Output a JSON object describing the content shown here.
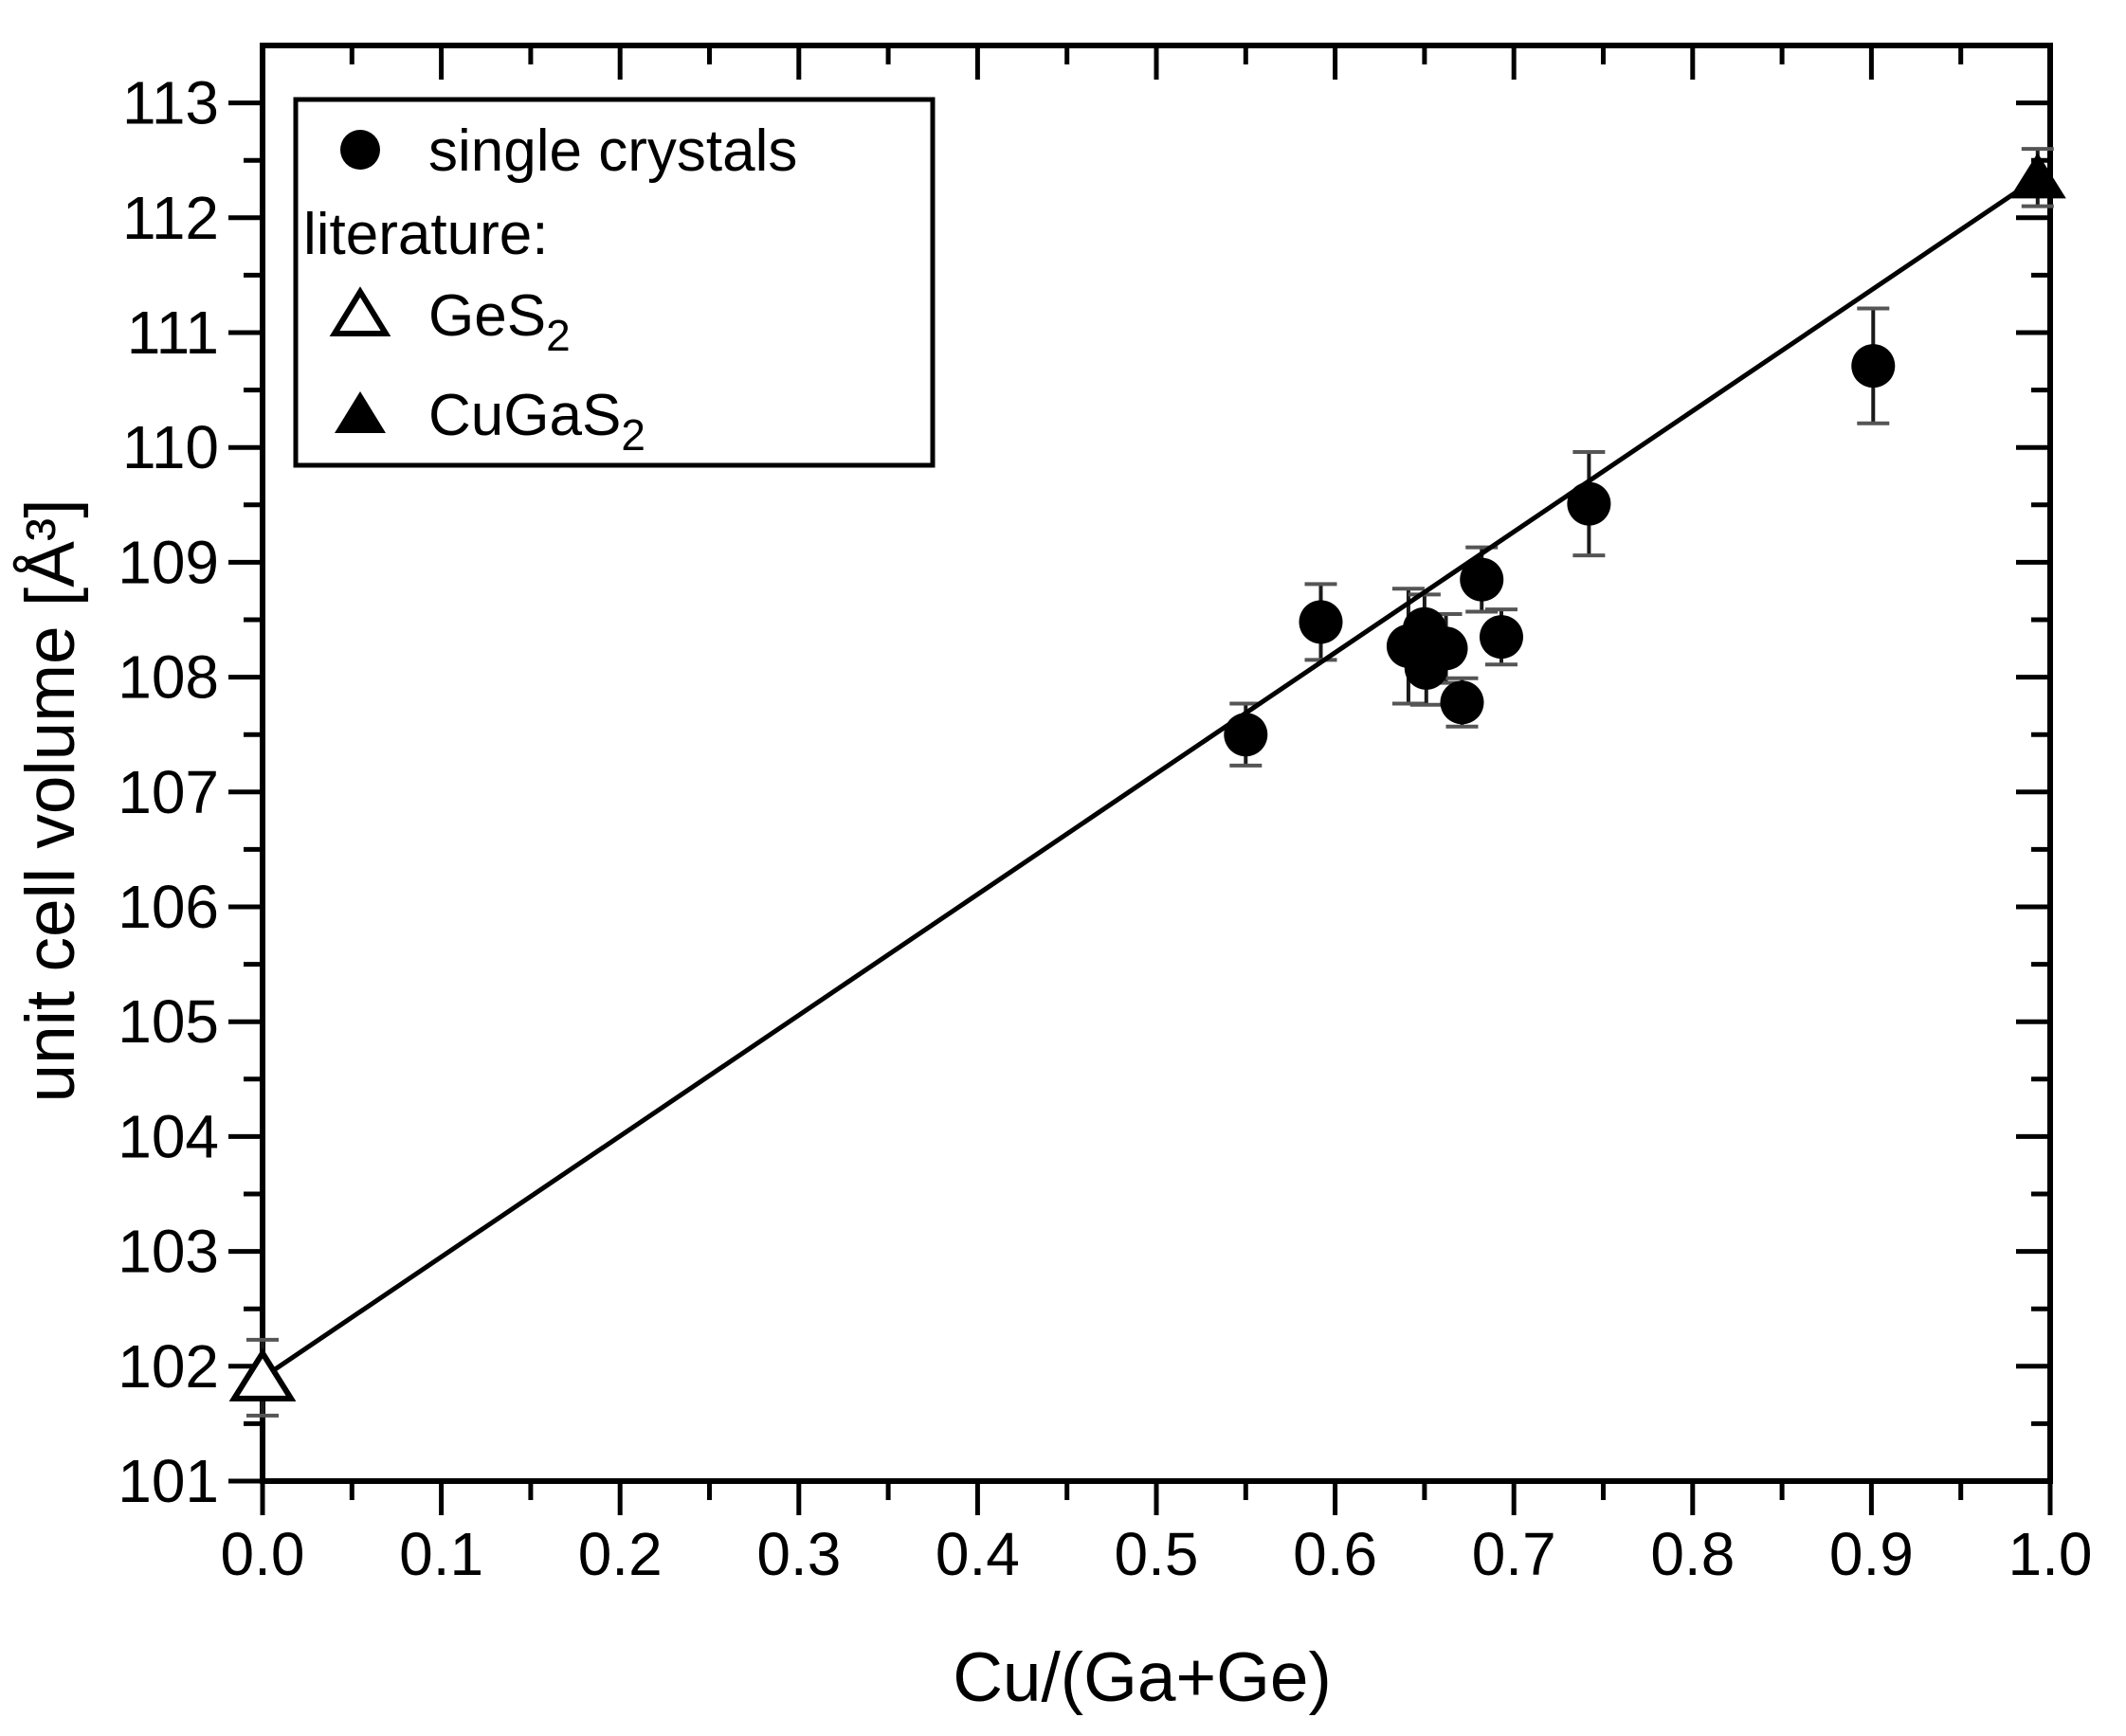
{
  "chart_data": {
    "type": "scatter",
    "title": "",
    "xlabel": "Cu/(Ga+Ge)",
    "ylabel": "unit cell volume  [Å³]",
    "xlim": [
      0.0,
      1.0
    ],
    "ylim": [
      101.0,
      113.5
    ],
    "x_major_step": 0.1,
    "x_minor_step": 0.05,
    "y_major_step": 1.0,
    "y_minor_step": 0.5,
    "grid": false,
    "x_tick_labels": [
      "0.0",
      "0.1",
      "0.2",
      "0.3",
      "0.4",
      "0.5",
      "0.6",
      "0.7",
      "0.8",
      "0.9",
      "1.0"
    ],
    "y_tick_labels": [
      "101",
      "102",
      "103",
      "104",
      "105",
      "106",
      "107",
      "108",
      "109",
      "110",
      "111",
      "112",
      "113"
    ],
    "legend_position": "top-left",
    "legend": {
      "entries": [
        {
          "marker": "circle-filled",
          "label": "single crystals",
          "sub": ""
        },
        {
          "marker": "none",
          "label": "literature:",
          "sub": ""
        },
        {
          "marker": "triangle-open",
          "label": "GeS",
          "sub": "2"
        },
        {
          "marker": "triangle-filled",
          "label": "CuGaS",
          "sub": "2"
        }
      ]
    },
    "series": [
      {
        "name": "single crystals",
        "marker": "circle-filled",
        "points": [
          {
            "x": 0.55,
            "y": 107.5,
            "err": 0.27
          },
          {
            "x": 0.592,
            "y": 108.48,
            "err": 0.33
          },
          {
            "x": 0.641,
            "y": 108.27,
            "err": 0.5
          },
          {
            "x": 0.65,
            "y": 108.42,
            "err": 0.3
          },
          {
            "x": 0.651,
            "y": 108.08,
            "err": 0.32
          },
          {
            "x": 0.662,
            "y": 108.25,
            "err": 0.3
          },
          {
            "x": 0.671,
            "y": 107.78,
            "err": 0.21
          },
          {
            "x": 0.682,
            "y": 108.85,
            "err": 0.28
          },
          {
            "x": 0.693,
            "y": 108.35,
            "err": 0.24
          },
          {
            "x": 0.742,
            "y": 109.51,
            "err": 0.45
          },
          {
            "x": 0.901,
            "y": 110.71,
            "err": 0.5
          }
        ]
      },
      {
        "name": "GeS₂",
        "marker": "triangle-open",
        "points": [
          {
            "x": 0.0,
            "y": 101.9,
            "err": 0.33
          }
        ]
      },
      {
        "name": "CuGaS₂",
        "marker": "triangle-filled",
        "points": [
          {
            "x": 0.993,
            "y": 112.35,
            "err": 0.25
          }
        ]
      }
    ],
    "fit_line": {
      "x1": 0.0,
      "y1": 101.9,
      "x2": 0.995,
      "y2": 112.37
    },
    "colors": {
      "foreground": "#000000",
      "background": "#ffffff",
      "error_bar": "#1a1a1a",
      "error_cap": "#555555"
    }
  }
}
